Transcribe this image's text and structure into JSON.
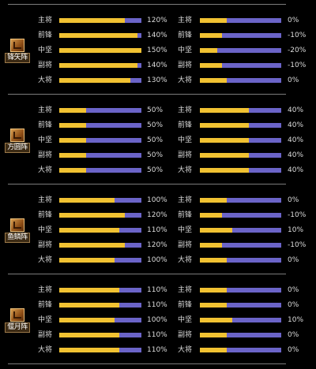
{
  "formations": [
    {
      "name": "锋矢阵",
      "icon": "formation-emblem-icon",
      "rows": [
        {
          "label_left": "主将",
          "fill_left": 0.8,
          "pct_left": "120%",
          "label_right": "主将",
          "fill_right": 0.33,
          "pct_right": "0%"
        },
        {
          "label_left": "前锋",
          "fill_left": 0.95,
          "pct_left": "140%",
          "label_right": "前锋",
          "fill_right": 0.27,
          "pct_right": "-10%"
        },
        {
          "label_left": "中坚",
          "fill_left": 1.0,
          "pct_left": "150%",
          "label_right": "中坚",
          "fill_right": 0.21,
          "pct_right": "-20%"
        },
        {
          "label_left": "副将",
          "fill_left": 0.95,
          "pct_left": "140%",
          "label_right": "副将",
          "fill_right": 0.27,
          "pct_right": "-10%"
        },
        {
          "label_left": "大将",
          "fill_left": 0.87,
          "pct_left": "130%",
          "label_right": "大将",
          "fill_right": 0.33,
          "pct_right": "0%"
        }
      ]
    },
    {
      "name": "方圆阵",
      "icon": "formation-emblem-icon",
      "rows": [
        {
          "label_left": "主将",
          "fill_left": 0.33,
          "pct_left": "50%",
          "label_right": "主将",
          "fill_right": 0.6,
          "pct_right": "40%"
        },
        {
          "label_left": "前锋",
          "fill_left": 0.33,
          "pct_left": "50%",
          "label_right": "前锋",
          "fill_right": 0.6,
          "pct_right": "40%"
        },
        {
          "label_left": "中坚",
          "fill_left": 0.33,
          "pct_left": "50%",
          "label_right": "中坚",
          "fill_right": 0.6,
          "pct_right": "40%"
        },
        {
          "label_left": "副将",
          "fill_left": 0.33,
          "pct_left": "50%",
          "label_right": "副将",
          "fill_right": 0.6,
          "pct_right": "40%"
        },
        {
          "label_left": "大将",
          "fill_left": 0.33,
          "pct_left": "50%",
          "label_right": "大将",
          "fill_right": 0.6,
          "pct_right": "40%"
        }
      ]
    },
    {
      "name": "鱼鳞阵",
      "icon": "formation-emblem-icon",
      "rows": [
        {
          "label_left": "主将",
          "fill_left": 0.67,
          "pct_left": "100%",
          "label_right": "主将",
          "fill_right": 0.33,
          "pct_right": "0%"
        },
        {
          "label_left": "前锋",
          "fill_left": 0.8,
          "pct_left": "120%",
          "label_right": "前锋",
          "fill_right": 0.27,
          "pct_right": "-10%"
        },
        {
          "label_left": "中坚",
          "fill_left": 0.73,
          "pct_left": "110%",
          "label_right": "中坚",
          "fill_right": 0.4,
          "pct_right": "10%"
        },
        {
          "label_left": "副将",
          "fill_left": 0.8,
          "pct_left": "120%",
          "label_right": "副将",
          "fill_right": 0.27,
          "pct_right": "-10%"
        },
        {
          "label_left": "大将",
          "fill_left": 0.67,
          "pct_left": "100%",
          "label_right": "大将",
          "fill_right": 0.33,
          "pct_right": "0%"
        }
      ]
    },
    {
      "name": "偃月阵",
      "icon": "formation-emblem-icon",
      "rows": [
        {
          "label_left": "主将",
          "fill_left": 0.73,
          "pct_left": "110%",
          "label_right": "主将",
          "fill_right": 0.33,
          "pct_right": "0%"
        },
        {
          "label_left": "前锋",
          "fill_left": 0.73,
          "pct_left": "110%",
          "label_right": "前锋",
          "fill_right": 0.33,
          "pct_right": "0%"
        },
        {
          "label_left": "中坚",
          "fill_left": 0.67,
          "pct_left": "100%",
          "label_right": "中坚",
          "fill_right": 0.4,
          "pct_right": "10%"
        },
        {
          "label_left": "副将",
          "fill_left": 0.73,
          "pct_left": "110%",
          "label_right": "副将",
          "fill_right": 0.33,
          "pct_right": "0%"
        },
        {
          "label_left": "大将",
          "fill_left": 0.73,
          "pct_left": "110%",
          "label_right": "大将",
          "fill_right": 0.33,
          "pct_right": "0%"
        }
      ]
    }
  ],
  "colors": {
    "bar_fill": "#f1c232",
    "bar_track": "#6b64c8",
    "background": "#000000",
    "separator": "#7b7b7b"
  }
}
